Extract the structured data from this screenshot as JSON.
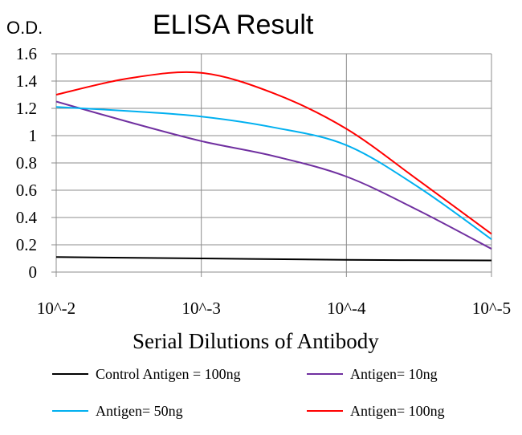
{
  "chart_data": {
    "type": "line",
    "title": "ELISA Result",
    "ylabel": "O.D.",
    "xlabel": "Serial Dilutions of Antibody",
    "categories": [
      "10^-2",
      "10^-3",
      "10^-4",
      "10^-5"
    ],
    "yticks": [
      "0",
      "0.2",
      "0.4",
      "0.6",
      "0.8",
      "1",
      "1.2",
      "1.4",
      "1.6"
    ],
    "ylim": [
      0,
      1.6
    ],
    "grid": true,
    "legend_position": "bottom",
    "series": [
      {
        "name": "Control Antigen = 100ng",
        "color": "#000000",
        "points": [
          [
            0,
            0.11
          ],
          [
            1,
            0.1
          ],
          [
            2,
            0.09
          ],
          [
            3,
            0.085
          ]
        ]
      },
      {
        "name": "Antigen= 10ng",
        "color": "#7030a0",
        "points": [
          [
            0,
            1.25
          ],
          [
            0.5,
            1.1
          ],
          [
            1,
            0.96
          ],
          [
            1.5,
            0.85
          ],
          [
            2,
            0.7
          ],
          [
            2.5,
            0.45
          ],
          [
            3,
            0.17
          ]
        ]
      },
      {
        "name": "Antigen= 50ng",
        "color": "#00b0f0",
        "points": [
          [
            0,
            1.21
          ],
          [
            0.5,
            1.18
          ],
          [
            1,
            1.14
          ],
          [
            1.5,
            1.06
          ],
          [
            2,
            0.93
          ],
          [
            2.5,
            0.62
          ],
          [
            3,
            0.24
          ]
        ]
      },
      {
        "name": "Antigen= 100ng",
        "color": "#ff0000",
        "points": [
          [
            0,
            1.3
          ],
          [
            0.5,
            1.42
          ],
          [
            1,
            1.46
          ],
          [
            1.5,
            1.31
          ],
          [
            2,
            1.05
          ],
          [
            2.5,
            0.67
          ],
          [
            3,
            0.28
          ]
        ]
      }
    ]
  }
}
